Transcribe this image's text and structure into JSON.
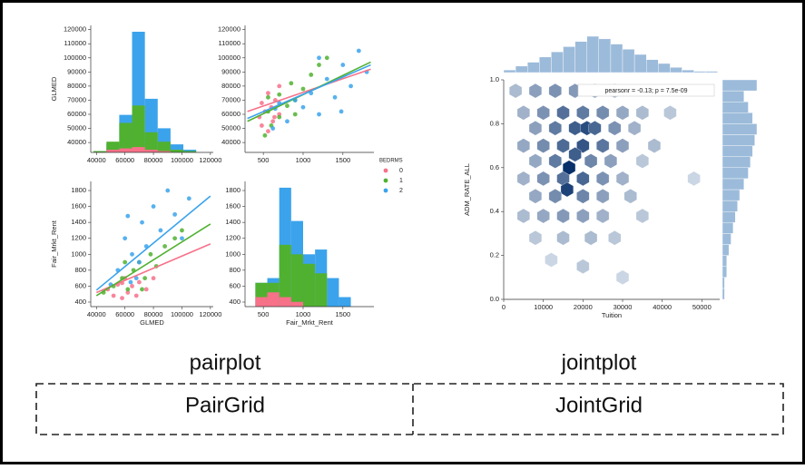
{
  "figures": [
    {
      "caption": "pairplot",
      "grid": "PairGrid"
    },
    {
      "caption": "jointplot",
      "grid": "JointGrid"
    }
  ],
  "chart_data": [
    {
      "type": "histogram",
      "ylabel": "GLMED",
      "bins": [
        38000,
        47000,
        56000,
        65000,
        74000,
        83000,
        92000,
        101000,
        110000
      ],
      "series": [
        {
          "color": "#f77189",
          "values": [
            0,
            2,
            3,
            4,
            2,
            1,
            0,
            0
          ]
        },
        {
          "color": "#50b131",
          "values": [
            1,
            8,
            22,
            35,
            15,
            8,
            2,
            1
          ]
        },
        {
          "color": "#3ba3ec",
          "values": [
            1,
            6,
            28,
            90,
            40,
            18,
            6,
            2
          ]
        }
      ],
      "xlim": [
        36000,
        122000
      ],
      "xticks": [
        40000,
        60000,
        80000,
        100000,
        120000
      ],
      "ylim": [
        33000,
        123000
      ],
      "yticks": [
        40000,
        50000,
        60000,
        70000,
        80000,
        90000,
        100000,
        110000,
        120000
      ]
    },
    {
      "type": "scatter",
      "legend_title": "BEDRMS",
      "series": [
        {
          "name": "0",
          "color": "#f77189",
          "x": [
            560,
            480,
            620,
            450,
            700,
            520,
            600,
            480,
            650,
            560,
            700,
            640
          ],
          "values": [
            48000,
            52000,
            55000,
            58000,
            60000,
            62000,
            65000,
            68000,
            70000,
            75000,
            80000,
            58000
          ],
          "fit_x": [
            300,
            1850
          ],
          "fit_y": [
            62000,
            92000
          ]
        },
        {
          "name": "1",
          "color": "#50b131",
          "x": [
            520,
            600,
            700,
            560,
            800,
            900,
            700,
            1000,
            850,
            1100,
            1200,
            1300,
            560,
            900
          ],
          "values": [
            45000,
            52000,
            58000,
            62000,
            66000,
            70000,
            74000,
            78000,
            82000,
            88000,
            95000,
            100000,
            72000,
            60000
          ],
          "fit_x": [
            300,
            1850
          ],
          "fit_y": [
            55000,
            97000
          ]
        },
        {
          "name": "2",
          "color": "#3ba3ec",
          "x": [
            620,
            800,
            1200,
            1480,
            1000,
            700,
            1400,
            1100,
            1600,
            1300,
            1800,
            1500,
            1200,
            1700,
            900,
            650
          ],
          "values": [
            50000,
            55000,
            60000,
            62000,
            65000,
            68000,
            72000,
            75000,
            80000,
            85000,
            90000,
            95000,
            100000,
            105000,
            70000,
            64000
          ],
          "fit_x": [
            300,
            1850
          ],
          "fit_y": [
            57000,
            95000
          ]
        }
      ],
      "xlim": [
        270,
        1890
      ],
      "xticks": [
        500,
        1000,
        1500
      ],
      "ylim": [
        33000,
        123000
      ],
      "yticks": [
        40000,
        50000,
        60000,
        70000,
        80000,
        90000,
        100000,
        110000,
        120000
      ]
    },
    {
      "type": "scatter",
      "xlabel": "GLMED",
      "ylabel": "Fair_Mrkt_Rent",
      "series": [
        {
          "color": "#f77189",
          "x": [
            48000,
            52000,
            55000,
            58000,
            60000,
            62000,
            65000,
            68000,
            70000,
            75000,
            80000,
            58000
          ],
          "values": [
            560,
            480,
            620,
            450,
            700,
            520,
            600,
            480,
            650,
            560,
            700,
            640
          ],
          "fit_x": [
            40000,
            120000
          ],
          "fit_y": [
            520,
            1130
          ]
        },
        {
          "color": "#50b131",
          "x": [
            45000,
            52000,
            58000,
            62000,
            66000,
            70000,
            74000,
            78000,
            82000,
            88000,
            95000,
            100000,
            72000,
            60000
          ],
          "values": [
            520,
            600,
            700,
            560,
            800,
            900,
            700,
            1000,
            850,
            1100,
            1200,
            1300,
            560,
            900
          ],
          "fit_x": [
            40000,
            120000
          ],
          "fit_y": [
            480,
            1380
          ]
        },
        {
          "color": "#3ba3ec",
          "x": [
            50000,
            55000,
            60000,
            62000,
            65000,
            68000,
            72000,
            75000,
            80000,
            85000,
            90000,
            95000,
            100000,
            105000,
            70000,
            64000
          ],
          "values": [
            620,
            800,
            1200,
            1480,
            1000,
            700,
            1400,
            1100,
            1600,
            1300,
            1800,
            1500,
            1200,
            1700,
            900,
            650
          ],
          "fit_x": [
            40000,
            120000
          ],
          "fit_y": [
            550,
            1730
          ]
        }
      ],
      "xlim": [
        36000,
        122000
      ],
      "xticks": [
        40000,
        60000,
        80000,
        100000,
        120000
      ],
      "ylim": [
        343,
        1914
      ],
      "yticks": [
        400,
        600,
        800,
        1000,
        1200,
        1400,
        1600,
        1800
      ]
    },
    {
      "type": "histogram",
      "xlabel": "Fair_Mrkt_Rent",
      "bins": [
        400,
        550,
        700,
        850,
        1000,
        1150,
        1300,
        1450,
        1600
      ],
      "series": [
        {
          "color": "#f77189",
          "values": [
            4,
            6,
            4,
            2,
            0,
            0,
            0,
            0
          ]
        },
        {
          "color": "#50b131",
          "values": [
            10,
            10,
            26,
            22,
            18,
            14,
            0,
            0
          ]
        },
        {
          "color": "#3ba3ec",
          "values": [
            10,
            12,
            50,
            36,
            22,
            24,
            12,
            4
          ]
        }
      ],
      "xlim": [
        270,
        1890
      ],
      "xticks": [
        500,
        1000,
        1500
      ],
      "ylim": [
        343,
        1914
      ],
      "yticks": [
        400,
        600,
        800,
        1000,
        1200,
        1400,
        1600,
        1800
      ]
    },
    {
      "type": "hexbin",
      "xlabel": "Tuition",
      "ylabel": "ADM_RATE_ALL",
      "annotation": "pearsonr = -0.13; p = 7.5e-09",
      "color": "#3a78b5",
      "x": [
        3000,
        8000,
        13000,
        18000,
        23000,
        28000,
        5000,
        10000,
        15000,
        20000,
        25000,
        30000,
        35000,
        42000,
        8000,
        13000,
        18000,
        21000,
        23000,
        28000,
        33000,
        5000,
        10000,
        15000,
        20000,
        25000,
        30000,
        38000,
        8000,
        13000,
        16500,
        18000,
        22000,
        27000,
        35000,
        5000,
        10000,
        15000,
        20000,
        25000,
        30000,
        48000,
        16000,
        8000,
        13000,
        20000,
        25000,
        32000,
        5000,
        10000,
        15000,
        20000,
        25000,
        35000,
        8000,
        15000,
        22000,
        28000,
        12000,
        20000,
        30000
      ],
      "y": [
        0.95,
        0.95,
        0.95,
        0.95,
        0.95,
        0.95,
        0.85,
        0.85,
        0.85,
        0.85,
        0.85,
        0.85,
        0.85,
        0.85,
        0.78,
        0.78,
        0.78,
        0.78,
        0.78,
        0.78,
        0.78,
        0.7,
        0.7,
        0.7,
        0.7,
        0.7,
        0.7,
        0.7,
        0.63,
        0.63,
        0.6,
        0.66,
        0.63,
        0.63,
        0.63,
        0.55,
        0.55,
        0.55,
        0.55,
        0.55,
        0.55,
        0.55,
        0.5,
        0.47,
        0.47,
        0.47,
        0.47,
        0.47,
        0.38,
        0.38,
        0.38,
        0.38,
        0.38,
        0.38,
        0.28,
        0.28,
        0.28,
        0.28,
        0.18,
        0.15,
        0.1
      ],
      "values": [
        3,
        6,
        8,
        7,
        5,
        3,
        4,
        8,
        14,
        12,
        9,
        5,
        3,
        2,
        6,
        12,
        18,
        22,
        16,
        8,
        4,
        5,
        9,
        15,
        20,
        13,
        6,
        3,
        5,
        12,
        30,
        18,
        10,
        6,
        2,
        4,
        8,
        14,
        16,
        8,
        4,
        1,
        25,
        5,
        9,
        10,
        6,
        3,
        3,
        5,
        7,
        6,
        4,
        2,
        2,
        3,
        3,
        2,
        1,
        2,
        1
      ],
      "marginal_x": {
        "bins": [
          0,
          3000,
          6000,
          9000,
          12000,
          15000,
          18000,
          21000,
          24000,
          27000,
          30000,
          33000,
          36000,
          39000,
          42000,
          45000,
          48000,
          51000,
          54000
        ],
        "values": [
          2,
          5,
          8,
          12,
          16,
          20,
          24,
          28,
          26,
          22,
          18,
          14,
          10,
          7,
          4,
          2,
          1,
          1
        ]
      },
      "marginal_y": {
        "bins": [
          0,
          0.05,
          0.1,
          0.15,
          0.2,
          0.25,
          0.3,
          0.35,
          0.4,
          0.45,
          0.5,
          0.55,
          0.6,
          0.65,
          0.7,
          0.75,
          0.8,
          0.85,
          0.9,
          0.95,
          1
        ],
        "values": [
          1,
          1,
          2,
          2,
          3,
          4,
          5,
          6,
          7,
          8,
          10,
          12,
          13,
          14,
          15,
          16,
          14,
          12,
          10,
          16
        ]
      },
      "xlim": [
        0,
        54500
      ],
      "xticks": [
        0,
        10000,
        20000,
        30000,
        40000,
        50000
      ],
      "ylim": [
        0,
        1
      ],
      "yticks": [
        {
          "value": 0,
          "label": "0.0"
        },
        {
          "value": 0.2,
          "label": "0.2"
        },
        {
          "value": 0.4,
          "label": "0.4"
        },
        {
          "value": 0.6,
          "label": "0.6"
        },
        {
          "value": 0.8,
          "label": "0.8"
        },
        {
          "value": 1,
          "label": "1.0"
        }
      ]
    }
  ]
}
